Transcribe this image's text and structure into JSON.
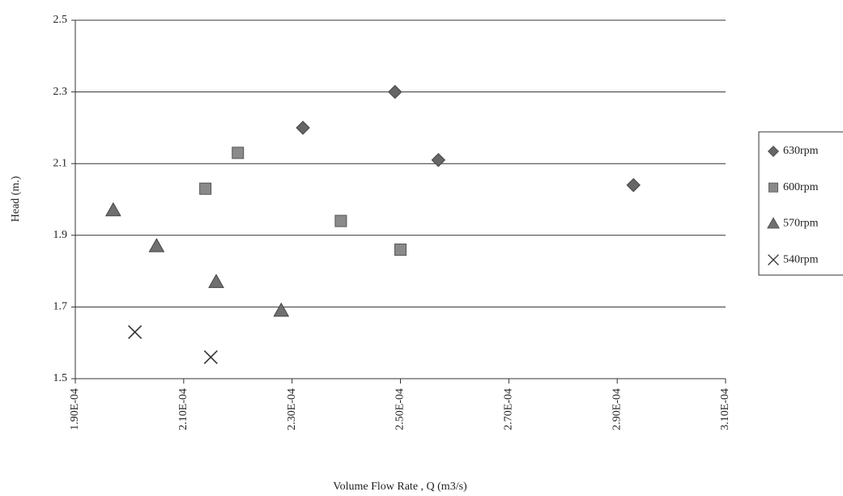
{
  "chart_data": {
    "type": "scatter",
    "x_label": "Volume Flow Rate , Q (m3/s)",
    "y_label": "Head (m.)",
    "xlim": [
      0.00019,
      0.00031
    ],
    "xticks": [
      {
        "value": 0.00019,
        "label": "1.90E-04"
      },
      {
        "value": 0.00021,
        "label": "2.10E-04"
      },
      {
        "value": 0.00023,
        "label": "2.30E-04"
      },
      {
        "value": 0.00025,
        "label": "2.50E-04"
      },
      {
        "value": 0.00027,
        "label": "2.70E-04"
      },
      {
        "value": 0.00029,
        "label": "2.90E-04"
      },
      {
        "value": 0.00031,
        "label": "3.10E-04"
      }
    ],
    "ylim": [
      1.5,
      2.5
    ],
    "yticks": [
      1.5,
      1.7,
      1.9,
      2.1,
      2.3,
      2.5
    ],
    "grid": true,
    "legend": "right",
    "series": [
      {
        "name": "630rpm",
        "color": "#666666",
        "marker": "diamond",
        "x": [
          0.000232,
          0.000249,
          0.000257,
          0.000293
        ],
        "values": [
          2.2,
          2.3,
          2.11,
          2.04
        ]
      },
      {
        "name": "600rpm",
        "color": "#8a8a8a",
        "marker": "square",
        "x": [
          0.00022,
          0.000214,
          0.000239,
          0.00025
        ],
        "values": [
          2.13,
          2.03,
          1.94,
          1.86
        ]
      },
      {
        "name": "570rpm",
        "color": "#707070",
        "marker": "triangle",
        "x": [
          0.000197,
          0.000205,
          0.000216,
          0.000228
        ],
        "values": [
          1.97,
          1.87,
          1.77,
          1.69
        ]
      },
      {
        "name": "540rpm",
        "color": "#333333",
        "marker": "x",
        "x": [
          0.000201,
          0.000215
        ],
        "values": [
          1.63,
          1.56
        ]
      }
    ]
  }
}
